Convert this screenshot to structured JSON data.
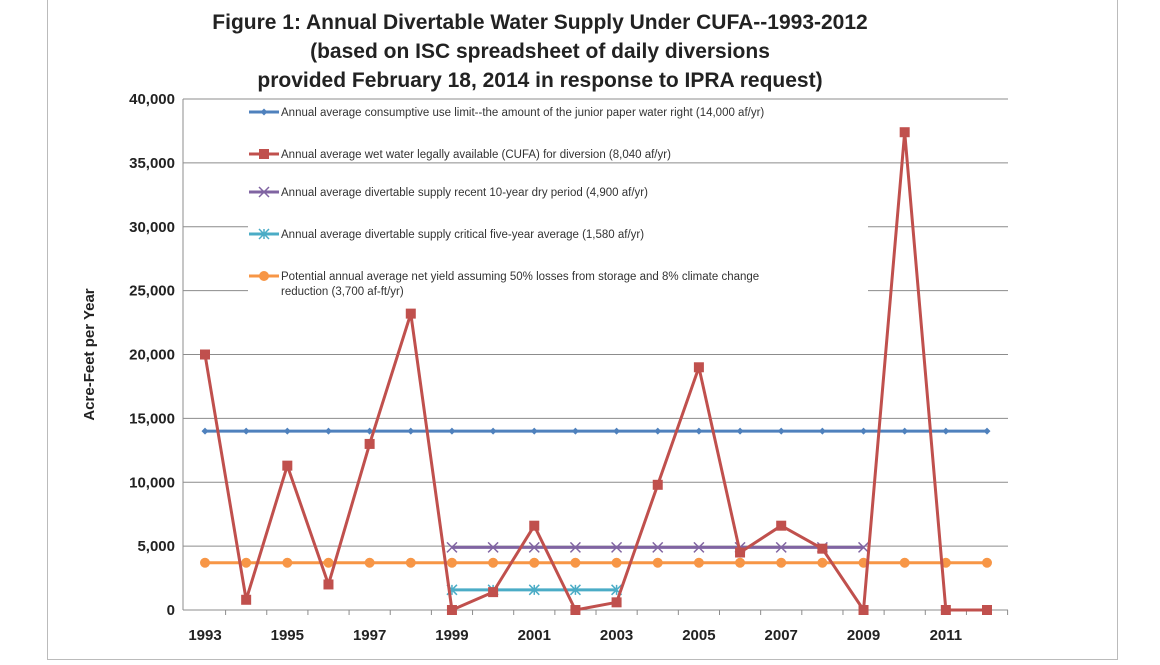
{
  "chart_data": {
    "type": "line",
    "title": [
      "Figure 1:  Annual Divertable Water Supply Under CUFA--1993-2012",
      "(based on ISC spreadsheet of daily diversions",
      "provided February 18, 2014 in response to IPRA request)"
    ],
    "xlabel": "",
    "ylabel": "Acre-Feet per Year",
    "ylim": [
      0,
      40000
    ],
    "yticks": [
      "0",
      "5,000",
      "10,000",
      "15,000",
      "20,000",
      "25,000",
      "30,000",
      "35,000",
      "40,000"
    ],
    "xticks": [
      "1993",
      "1995",
      "1997",
      "1999",
      "2001",
      "2003",
      "2005",
      "2007",
      "2009",
      "2011"
    ],
    "grid": "horizontal",
    "legend": "top-inside",
    "x": [
      1993,
      1994,
      1995,
      1996,
      1997,
      1998,
      1999,
      2000,
      2001,
      2002,
      2003,
      2004,
      2005,
      2006,
      2007,
      2008,
      2009,
      2010,
      2011,
      2012
    ],
    "series": [
      {
        "name": "Annual average  consumptive use limit--the amount of the junior paper water right (14,000 af/yr)",
        "color": "#4f81bd",
        "marker": "diamond",
        "values": [
          14000,
          14000,
          14000,
          14000,
          14000,
          14000,
          14000,
          14000,
          14000,
          14000,
          14000,
          14000,
          14000,
          14000,
          14000,
          14000,
          14000,
          14000,
          14000,
          14000
        ]
      },
      {
        "name": "Annual average wet water legally available (CUFA) for diversion  (8,040 af/yr)",
        "color": "#c0504d",
        "marker": "square",
        "values": [
          20000,
          800,
          11300,
          2000,
          13000,
          23200,
          0,
          1400,
          6600,
          0,
          600,
          9800,
          19000,
          4500,
          6600,
          4800,
          0,
          37400,
          0,
          0
        ]
      },
      {
        "name": "Annual average divertable supply  recent 10-year dry period (4,900 af/yr)",
        "color": "#8064a2",
        "marker": "x",
        "values": [
          null,
          null,
          null,
          null,
          null,
          null,
          4900,
          4900,
          4900,
          4900,
          4900,
          4900,
          4900,
          4900,
          4900,
          4900,
          4900,
          null,
          null,
          null
        ]
      },
      {
        "name": "Annual average divertable supply critical five-year  average (1,580 af/yr)",
        "color": "#4bacc6",
        "marker": "star",
        "values": [
          null,
          null,
          null,
          null,
          null,
          null,
          1580,
          1580,
          1580,
          1580,
          1580,
          null,
          null,
          null,
          null,
          null,
          null,
          null,
          null,
          null
        ]
      },
      {
        "name": "Potential annual average net yield assuming 50% losses from storage and 8% climate change reduction (3,700 af-ft/yr)",
        "color": "#f79646",
        "marker": "circle",
        "values": [
          3700,
          3700,
          3700,
          3700,
          3700,
          3700,
          3700,
          3700,
          3700,
          3700,
          3700,
          3700,
          3700,
          3700,
          3700,
          3700,
          3700,
          3700,
          3700,
          3700
        ]
      }
    ]
  }
}
